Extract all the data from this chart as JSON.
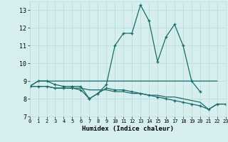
{
  "xlabel": "Humidex (Indice chaleur)",
  "bg_color": "#d7eeee",
  "grid_color": "#b8dede",
  "line_color": "#1a6b6b",
  "xlim": [
    0,
    23
  ],
  "ylim": [
    7,
    13.5
  ],
  "yticks": [
    7,
    8,
    9,
    10,
    11,
    12,
    13
  ],
  "xticks": [
    0,
    1,
    2,
    3,
    4,
    5,
    6,
    7,
    8,
    9,
    10,
    11,
    12,
    13,
    14,
    15,
    16,
    17,
    18,
    19,
    20,
    21,
    22,
    23
  ],
  "series": [
    {
      "x": [
        0,
        1,
        2,
        3,
        4,
        5,
        6,
        7,
        8,
        9,
        10,
        11,
        12,
        13,
        14,
        15,
        16,
        17,
        18,
        19,
        20
      ],
      "y": [
        8.7,
        9.0,
        9.0,
        8.8,
        8.7,
        8.7,
        8.7,
        8.0,
        8.3,
        8.8,
        11.0,
        11.7,
        11.7,
        13.3,
        12.4,
        10.1,
        11.5,
        12.2,
        11.0,
        9.0,
        8.4
      ],
      "marker": true
    },
    {
      "x": [
        0,
        1,
        2,
        3,
        4,
        5,
        6,
        7,
        8,
        9,
        10,
        11,
        12,
        13,
        14,
        15,
        16,
        17,
        18,
        19,
        20,
        21,
        22
      ],
      "y": [
        8.7,
        9.0,
        9.0,
        9.0,
        9.0,
        9.0,
        9.0,
        9.0,
        9.0,
        9.0,
        9.0,
        9.0,
        9.0,
        9.0,
        9.0,
        9.0,
        9.0,
        9.0,
        9.0,
        9.0,
        9.0,
        9.0,
        9.0
      ],
      "marker": false
    },
    {
      "x": [
        0,
        1,
        2,
        3,
        4,
        5,
        6,
        7,
        8,
        9,
        10,
        11,
        12,
        13,
        14,
        15,
        16,
        17,
        18,
        19,
        20,
        21,
        22,
        23
      ],
      "y": [
        8.7,
        8.7,
        8.7,
        8.6,
        8.6,
        8.6,
        8.6,
        8.5,
        8.5,
        8.5,
        8.4,
        8.4,
        8.3,
        8.3,
        8.2,
        8.2,
        8.1,
        8.1,
        8.0,
        7.9,
        7.8,
        7.4,
        7.7,
        7.7
      ],
      "marker": false
    },
    {
      "x": [
        0,
        1,
        2,
        3,
        4,
        5,
        6,
        7,
        8,
        9,
        10,
        11,
        12,
        13,
        14,
        15,
        16,
        17,
        18,
        19,
        20,
        21,
        22,
        23
      ],
      "y": [
        8.7,
        8.7,
        8.7,
        8.6,
        8.6,
        8.6,
        8.5,
        8.0,
        8.3,
        8.6,
        8.5,
        8.5,
        8.4,
        8.3,
        8.2,
        8.1,
        8.0,
        7.9,
        7.8,
        7.7,
        7.6,
        7.4,
        7.7,
        7.7
      ],
      "marker": true
    }
  ]
}
